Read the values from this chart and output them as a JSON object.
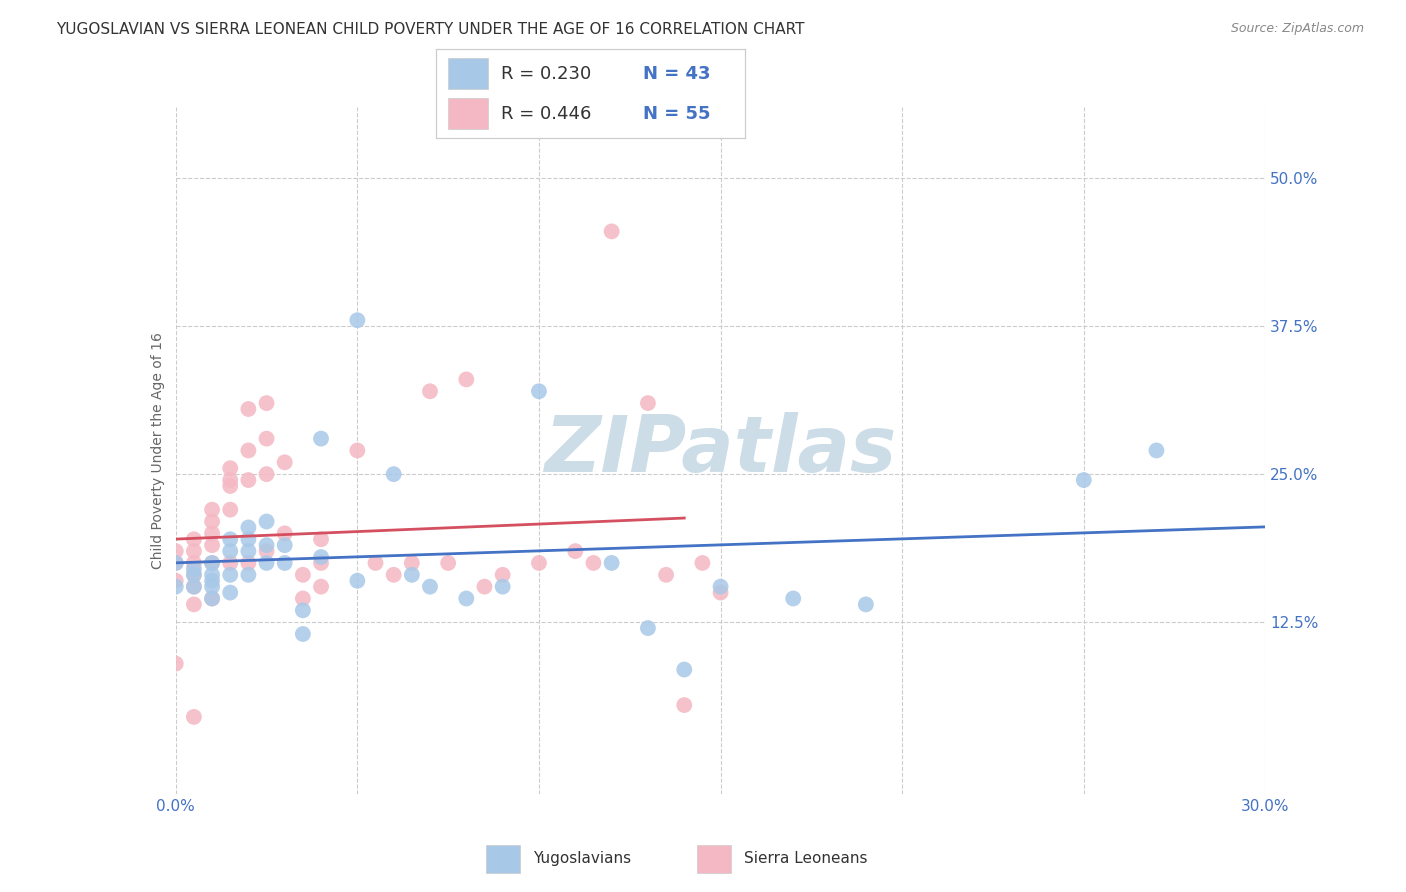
{
  "title": "YUGOSLAVIAN VS SIERRA LEONEAN CHILD POVERTY UNDER THE AGE OF 16 CORRELATION CHART",
  "source": "Source: ZipAtlas.com",
  "ylabel": "Child Poverty Under the Age of 16",
  "xlim": [
    0.0,
    0.3
  ],
  "ylim": [
    -0.02,
    0.56
  ],
  "xticks": [
    0.0,
    0.05,
    0.1,
    0.15,
    0.2,
    0.25,
    0.3
  ],
  "xticklabels": [
    "0.0%",
    "",
    "",
    "",
    "",
    "",
    "30.0%"
  ],
  "yticks_right": [
    0.125,
    0.25,
    0.375,
    0.5
  ],
  "yticklabels_right": [
    "12.5%",
    "25.0%",
    "37.5%",
    "50.0%"
  ],
  "legend_r1": "R = 0.230",
  "legend_n1": "N = 43",
  "legend_r2": "R = 0.446",
  "legend_n2": "N = 55",
  "color_blue": "#a8c8e8",
  "color_pink": "#f4b8c4",
  "trend_color_blue": "#4472c4",
  "trend_color_pink": "#d45060",
  "title_fontsize": 11,
  "label_fontsize": 10,
  "tick_fontsize": 11,
  "watermark": "ZIPatlas",
  "watermark_color": "#ccdde8",
  "background_color": "#ffffff",
  "grid_color": "#cccccc",
  "yugoslavian_x": [
    0.0,
    0.0,
    0.005,
    0.005,
    0.005,
    0.01,
    0.01,
    0.01,
    0.01,
    0.01,
    0.015,
    0.015,
    0.015,
    0.015,
    0.02,
    0.02,
    0.02,
    0.02,
    0.025,
    0.025,
    0.025,
    0.03,
    0.03,
    0.035,
    0.035,
    0.04,
    0.04,
    0.05,
    0.05,
    0.06,
    0.065,
    0.07,
    0.08,
    0.09,
    0.1,
    0.12,
    0.13,
    0.14,
    0.15,
    0.17,
    0.19,
    0.25,
    0.27
  ],
  "yugoslavian_y": [
    0.175,
    0.155,
    0.17,
    0.165,
    0.155,
    0.175,
    0.165,
    0.16,
    0.155,
    0.145,
    0.195,
    0.185,
    0.165,
    0.15,
    0.205,
    0.195,
    0.185,
    0.165,
    0.21,
    0.19,
    0.175,
    0.19,
    0.175,
    0.135,
    0.115,
    0.28,
    0.18,
    0.38,
    0.16,
    0.25,
    0.165,
    0.155,
    0.145,
    0.155,
    0.32,
    0.175,
    0.12,
    0.085,
    0.155,
    0.145,
    0.14,
    0.245,
    0.27
  ],
  "sl_x": [
    0.0,
    0.0,
    0.0,
    0.0,
    0.005,
    0.005,
    0.005,
    0.005,
    0.005,
    0.005,
    0.005,
    0.01,
    0.01,
    0.01,
    0.01,
    0.01,
    0.01,
    0.015,
    0.015,
    0.015,
    0.015,
    0.015,
    0.02,
    0.02,
    0.02,
    0.02,
    0.025,
    0.025,
    0.025,
    0.025,
    0.03,
    0.03,
    0.035,
    0.035,
    0.04,
    0.04,
    0.04,
    0.05,
    0.055,
    0.06,
    0.065,
    0.07,
    0.075,
    0.08,
    0.085,
    0.09,
    0.1,
    0.11,
    0.115,
    0.12,
    0.13,
    0.135,
    0.14,
    0.145,
    0.15
  ],
  "sl_y": [
    0.185,
    0.175,
    0.16,
    0.09,
    0.195,
    0.185,
    0.175,
    0.165,
    0.155,
    0.14,
    0.045,
    0.22,
    0.21,
    0.2,
    0.19,
    0.175,
    0.145,
    0.255,
    0.245,
    0.24,
    0.22,
    0.175,
    0.305,
    0.27,
    0.245,
    0.175,
    0.31,
    0.28,
    0.25,
    0.185,
    0.26,
    0.2,
    0.165,
    0.145,
    0.195,
    0.175,
    0.155,
    0.27,
    0.175,
    0.165,
    0.175,
    0.32,
    0.175,
    0.33,
    0.155,
    0.165,
    0.175,
    0.185,
    0.175,
    0.455,
    0.31,
    0.165,
    0.055,
    0.175,
    0.15
  ]
}
